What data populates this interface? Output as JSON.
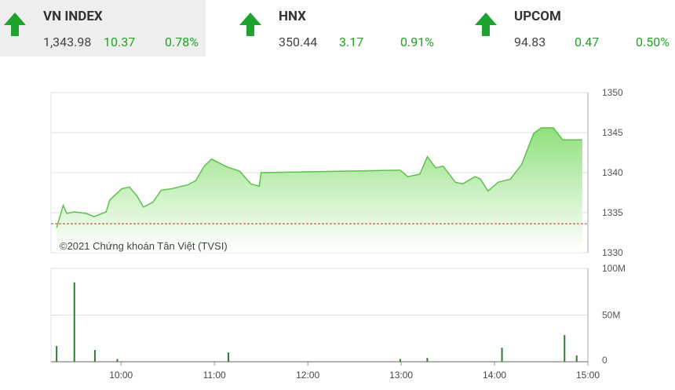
{
  "header": {
    "indices": [
      {
        "name": "VN INDEX",
        "value": "1,343.98",
        "change": "10.37",
        "percent": "0.78%"
      },
      {
        "name": "HNX",
        "value": "350.44",
        "change": "3.17",
        "percent": "0.91%"
      },
      {
        "name": "UPCOM",
        "value": "94.83",
        "change": "0.47",
        "percent": "0.50%"
      }
    ]
  },
  "chart_data": [
    {
      "type": "area",
      "annotation": "©2021 Chứng khoán Tân Việt (TVSI)",
      "color": "#5cc24a",
      "x": [
        9.31,
        9.38,
        9.42,
        9.5,
        9.63,
        9.71,
        9.84,
        9.88,
        10.01,
        10.09,
        10.17,
        10.24,
        10.34,
        10.43,
        10.55,
        10.72,
        10.8,
        10.89,
        10.97,
        11.14,
        11.27,
        11.39,
        11.48,
        11.5,
        12.99,
        13.07,
        13.2,
        13.28,
        13.37,
        13.45,
        13.58,
        13.66,
        13.79,
        13.85,
        13.93,
        14.04,
        14.17,
        14.29,
        14.42,
        14.5,
        14.63,
        14.73,
        14.94
      ],
      "values": [
        1333.1,
        1335.9,
        1334.9,
        1335.1,
        1334.9,
        1334.5,
        1335.1,
        1336.6,
        1338.0,
        1338.2,
        1337.1,
        1335.7,
        1336.3,
        1337.8,
        1338.0,
        1338.5,
        1339.0,
        1340.8,
        1341.7,
        1340.7,
        1340.2,
        1338.6,
        1338.3,
        1340.0,
        1340.3,
        1339.5,
        1339.8,
        1342.0,
        1340.6,
        1340.8,
        1338.8,
        1338.6,
        1339.5,
        1339.2,
        1337.7,
        1338.8,
        1339.2,
        1341.0,
        1344.9,
        1345.6,
        1345.6,
        1344.1,
        1344.1
      ],
      "reference_value": 1333.61,
      "xlim": [
        9.25,
        15
      ],
      "ylim": [
        1330,
        1350
      ],
      "yticks": [
        1330,
        1335,
        1340,
        1345,
        1350
      ],
      "grid": true
    },
    {
      "type": "bar",
      "color": "#2e7d32",
      "x": [
        9.31,
        9.5,
        9.72,
        9.96,
        11.15,
        12.99,
        13.28,
        14.08,
        14.75,
        14.88
      ],
      "values": [
        16800000,
        85000000,
        12600000,
        3000000,
        10000000,
        3000000,
        4000000,
        15000000,
        28600000,
        6700000
      ],
      "xlim": [
        9.25,
        15
      ],
      "ylim": [
        0,
        100000000
      ],
      "yticks": [
        0,
        {
          "value": 50000000,
          "label": "50M"
        },
        {
          "value": 100000000,
          "label": "100M"
        }
      ],
      "xticks": [
        {
          "value": 10,
          "label": "10:00"
        },
        {
          "value": 11,
          "label": "11:00"
        },
        {
          "value": 12,
          "label": "12:00"
        },
        {
          "value": 13,
          "label": "13:00"
        },
        {
          "value": 14,
          "label": "14:00"
        },
        {
          "value": 15,
          "label": "15:00"
        }
      ],
      "grid": true
    }
  ]
}
